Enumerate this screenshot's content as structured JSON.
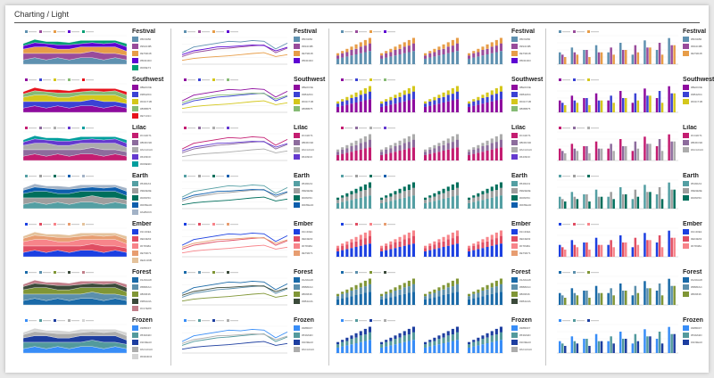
{
  "title": "Charting / Light",
  "palettes": [
    {
      "name": "Festival",
      "colors": [
        "#5F91B0",
        "#994C9B",
        "#E79D48",
        "#5D04D3",
        "#009E73"
      ]
    },
    {
      "name": "Southwest",
      "colors": [
        "#8E0C9E",
        "#3B42D4",
        "#D4C71B",
        "#86BB75",
        "#E7131C"
      ]
    },
    {
      "name": "Lilac",
      "colors": [
        "#C41D71",
        "#8D6C9D",
        "#ACACAC",
        "#6439CF",
        "#009E9D"
      ]
    },
    {
      "name": "Earth",
      "colors": [
        "#549FA3",
        "#9E9E9E",
        "#006F5C",
        "#0D5EAD",
        "#A2B2C6"
      ]
    },
    {
      "name": "Ember",
      "colors": [
        "#1C40E1",
        "#E04E63",
        "#F7848A",
        "#E79D71",
        "#E4C29B"
      ]
    },
    {
      "name": "Forest",
      "colors": [
        "#1A6AA8",
        "#5B8FAC",
        "#809636",
        "#3B4A3A",
        "#C17E89"
      ]
    },
    {
      "name": "Frozen",
      "colors": [
        "#388DF7",
        "#539A9D",
        "#1D3EA0",
        "#ACACAC",
        "#D4D4D4"
      ]
    }
  ],
  "area_data": [
    [
      2,
      3,
      2,
      3,
      2,
      3,
      3,
      2,
      3,
      2
    ],
    [
      3,
      2,
      3,
      2,
      3,
      2,
      3,
      3,
      2,
      2
    ],
    [
      2,
      3,
      3,
      2,
      2,
      3,
      2,
      3,
      3,
      2
    ],
    [
      1.5,
      2,
      1.5,
      2,
      2,
      1.5,
      2,
      1.5,
      2,
      2
    ],
    [
      1,
      1.5,
      1,
      1.5,
      1,
      1.5,
      1,
      1.5,
      1,
      1.5
    ]
  ],
  "line_data": [
    [
      30,
      45,
      50,
      55,
      60,
      58,
      62,
      60,
      40,
      55
    ],
    [
      20,
      30,
      35,
      40,
      42,
      45,
      48,
      50,
      30,
      42
    ],
    [
      10,
      15,
      18,
      20,
      22,
      25,
      28,
      30,
      20,
      25
    ],
    [
      25,
      35,
      40,
      45,
      46,
      48,
      50,
      49,
      35,
      44
    ]
  ],
  "stack_data": [
    [
      5,
      6,
      7,
      8,
      9,
      10,
      11,
      12
    ],
    [
      3,
      4,
      4,
      5,
      5,
      6,
      6,
      7
    ],
    [
      2,
      2,
      3,
      3,
      4,
      4,
      5,
      5
    ]
  ],
  "bar_data": [
    [
      5,
      7,
      6,
      8,
      5,
      9,
      4,
      10,
      6,
      11
    ],
    [
      4,
      5,
      6,
      5,
      7,
      6,
      8,
      7,
      9,
      8
    ],
    [
      3,
      4,
      3,
      5,
      4,
      6,
      5,
      7,
      4,
      8
    ]
  ]
}
